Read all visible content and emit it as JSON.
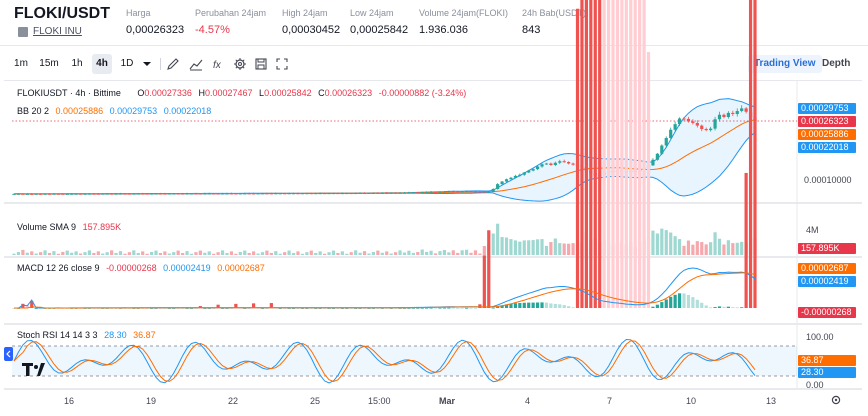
{
  "pair": {
    "symbol": "FLOKI/USDT",
    "coin_name": "FLOKI INU"
  },
  "stats": [
    {
      "label": "Harga",
      "value": "0,00026323",
      "negative": false
    },
    {
      "label": "Perubahan 24jam",
      "value": "-4.57%",
      "negative": true
    },
    {
      "label": "High 24jam",
      "value": "0,00030452",
      "negative": false
    },
    {
      "label": "Low 24jam",
      "value": "0,00025842",
      "negative": false
    },
    {
      "label": "Volume 24jam(FLOKI)",
      "value": "1.936.036",
      "negative": false
    },
    {
      "label": "24h Bab(USDT)",
      "value": "843",
      "negative": false
    }
  ],
  "toolbar": {
    "intervals": [
      "1m",
      "15m",
      "1h",
      "4h",
      "1D"
    ],
    "active_interval": "4h",
    "views": [
      "Trading View",
      "Depth"
    ],
    "active_view": "Trading View"
  },
  "main_legend": {
    "symbol_line": "FLOKIUSDT · 4h · Bittime",
    "o_label": "O",
    "o": "0.00027336",
    "h_label": "H",
    "h": "0.00027467",
    "l_label": "L",
    "l": "0.00025842",
    "c_label": "C",
    "c": "0.00026323",
    "change": "-0.00000882 (-3.24%)",
    "bb_label": "BB 20 2",
    "bb_basis": "0.00025886",
    "bb_upper": "0.00029753",
    "bb_lower": "0.00022018"
  },
  "price_axis": {
    "tags": [
      {
        "value": "0.00029753",
        "color": "#2196f3"
      },
      {
        "value": "0.00026323",
        "color": "#e8364a"
      },
      {
        "value": "0.00025886",
        "color": "#ff6d00"
      },
      {
        "value": "0.00022018",
        "color": "#2196f3"
      }
    ],
    "level": "0.00010000"
  },
  "volume": {
    "label": "Volume SMA 9",
    "value": "157.895K",
    "axis_max": "4M",
    "tag_color": "#e8364a"
  },
  "macd": {
    "label": "MACD 12 26 close 9",
    "histogram": "-0.00000268",
    "macd": "0.00002419",
    "signal": "0.00002687",
    "tags": [
      {
        "value": "0.00002687",
        "color": "#ff6d00"
      },
      {
        "value": "0.00002419",
        "color": "#2196f3"
      },
      {
        "value": "-0.00000268",
        "color": "#e8364a"
      }
    ]
  },
  "stoch": {
    "label": "Stoch RSI 14 14 3 3",
    "k": "28.30",
    "d": "36.87",
    "axis": [
      "100.00",
      "0.00"
    ],
    "tags": [
      {
        "value": "36.87",
        "color": "#ff6d00"
      },
      {
        "value": "28.30",
        "color": "#2196f3"
      }
    ]
  },
  "time_axis": [
    "16",
    "19",
    "22",
    "25",
    "15:00",
    "Mar",
    "4",
    "7",
    "10",
    "13"
  ],
  "colors": {
    "up": "#26a69a",
    "down": "#ef5350",
    "basis": "#ff6d00",
    "band": "#2196f3"
  },
  "chart_data": {
    "type": "candlestick",
    "title": "FLOKIUSDT · 4h · Bittime",
    "x_ticks": [
      "16",
      "19",
      "22",
      "25",
      "15:00",
      "Mar",
      "4",
      "7",
      "10",
      "13"
    ],
    "ylim": [
      5e-05,
      0.00033
    ],
    "close": [
      6.9e-05,
      6.92e-05,
      6.88e-05,
      6.9e-05,
      6.89e-05,
      6.91e-05,
      6.9e-05,
      6.92e-05,
      6.91e-05,
      6.93e-05,
      6.92e-05,
      6.9e-05,
      6.91e-05,
      6.93e-05,
      6.94e-05,
      6.92e-05,
      6.93e-05,
      6.95e-05,
      6.94e-05,
      6.93e-05,
      6.95e-05,
      6.96e-05,
      6.94e-05,
      6.95e-05,
      6.97e-05,
      6.96e-05,
      6.95e-05,
      6.97e-05,
      6.98e-05,
      6.97e-05,
      6.96e-05,
      6.98e-05,
      6.99e-05,
      6.98e-05,
      6.97e-05,
      6.99e-05,
      7e-05,
      6.99e-05,
      6.98e-05,
      7e-05,
      7.01e-05,
      7e-05,
      6.99e-05,
      7.01e-05,
      7.02e-05,
      7.01e-05,
      7e-05,
      7.02e-05,
      7.03e-05,
      7.02e-05,
      7.01e-05,
      7.03e-05,
      7.04e-05,
      7.03e-05,
      7.02e-05,
      7.04e-05,
      7.05e-05,
      7.04e-05,
      7.03e-05,
      7.05e-05,
      7.06e-05,
      7.05e-05,
      7.06e-05,
      7.07e-05,
      7.06e-05,
      7.07e-05,
      7.08e-05,
      7.07e-05,
      7.08e-05,
      7.09e-05,
      7.08e-05,
      7.09e-05,
      7.1e-05,
      7.09e-05,
      7.1e-05,
      7.11e-05,
      7.1e-05,
      7.12e-05,
      7.14e-05,
      7.12e-05,
      7.14e-05,
      7.16e-05,
      7.15e-05,
      7.17e-05,
      7.16e-05,
      7.18e-05,
      7.17e-05,
      7.19e-05,
      7.22e-05,
      7.26e-05,
      7.31e-05,
      7.29e-05,
      7.35e-05,
      7.41e-05,
      7.45e-05,
      7.42e-05,
      7.48e-05,
      7.52e-05,
      7.56e-05,
      7.5e-05,
      7.45e-05,
      7.55e-05,
      7.6e-05,
      7.58e-05,
      7.52e-05,
      7.5e-05,
      7.48e-05,
      7.5e-05,
      8.2e-05,
      9.5e-05,
      0.000102,
      0.000108,
      0.000112,
      0.000117,
      0.00012,
      0.000126,
      0.000131,
      0.000135,
      0.000142,
      0.000148,
      0.00015,
      0.000146,
      0.000152,
      0.000156,
      0.000154,
      0.00015,
      0.000147,
      0.000144,
      0.000141,
      0.00013,
      0.000124,
      0.000118,
      0.00012,
      0.000126,
      0.00013,
      0.000128,
      0.000131,
      0.000129,
      0.000127,
      0.00013,
      0.000129,
      0.000133,
      0.000137,
      0.000145,
      0.00016,
      0.000176,
      0.000198,
      0.000218,
      0.00024,
      0.000255,
      0.00027,
      0.000269,
      0.000262,
      0.000258,
      0.000251,
      0.000242,
      0.000239,
      0.000243,
      0.000268,
      0.00028,
      0.000274,
      0.000285,
      0.000282,
      0.00029,
      0.000297,
      0.000288,
      0.0002733,
      0.0002632
    ],
    "bb_upper": "0.00029753",
    "bb_basis": "0.00025886",
    "bb_lower": "0.00022018",
    "last_close": "0.00026323"
  }
}
